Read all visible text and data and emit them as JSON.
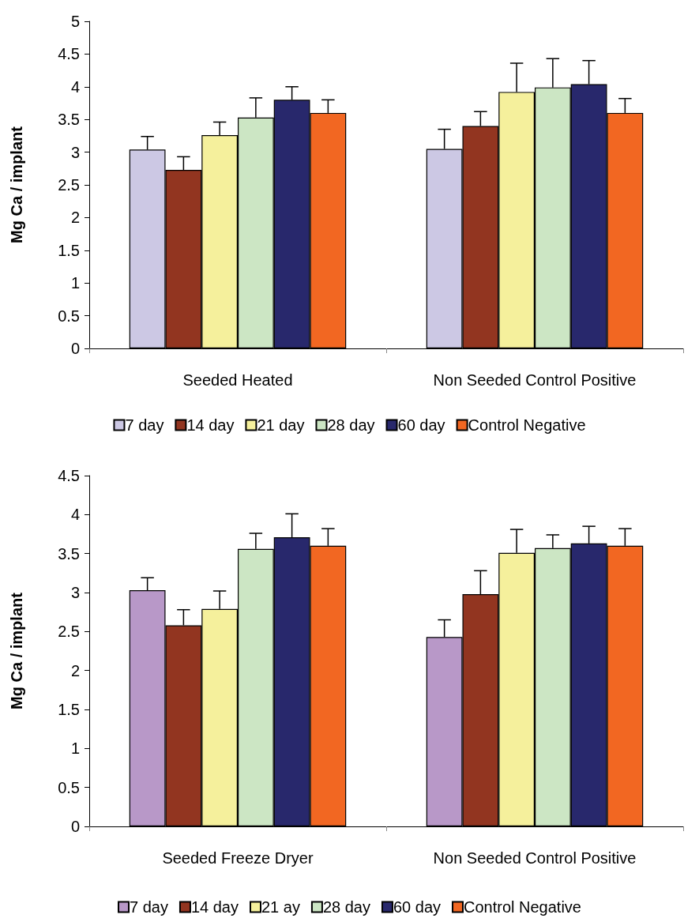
{
  "chart_data": [
    {
      "type": "bar",
      "ylabel": "Mg Ca / implant",
      "categories": [
        "Seeded Heated",
        "Non Seeded Control Positive"
      ],
      "ylim": [
        0,
        5
      ],
      "yticks": [
        0,
        0.5,
        1,
        1.5,
        2,
        2.5,
        3,
        3.5,
        4,
        4.5,
        5
      ],
      "grid": false,
      "legend": "bottom",
      "series": [
        {
          "name": "7 day",
          "color": "#ccc8e4",
          "values": [
            3.04,
            3.05
          ],
          "errors": [
            [
              3.04,
              3.24
            ],
            [
              3.05,
              3.35
            ]
          ]
        },
        {
          "name": "14 day",
          "color": "#923520",
          "values": [
            2.73,
            3.4
          ],
          "errors": [
            [
              2.73,
              2.93
            ],
            [
              3.4,
              3.62
            ]
          ]
        },
        {
          "name": "21 day",
          "color": "#f5f09c",
          "values": [
            3.26,
            3.92
          ],
          "errors": [
            [
              3.26,
              3.46
            ],
            [
              3.92,
              4.36
            ]
          ]
        },
        {
          "name": "28 day",
          "color": "#cce6c4",
          "values": [
            3.53,
            3.99
          ],
          "errors": [
            [
              3.53,
              3.83
            ],
            [
              3.99,
              4.43
            ]
          ]
        },
        {
          "name": "60 day",
          "color": "#28286c",
          "values": [
            3.8,
            4.04
          ],
          "errors": [
            [
              3.8,
              4.0
            ],
            [
              4.04,
              4.4
            ]
          ]
        },
        {
          "name": "Control Negative",
          "color": "#f26722",
          "values": [
            3.6,
            3.6
          ],
          "errors": [
            [
              3.6,
              3.8
            ],
            [
              3.6,
              3.82
            ]
          ]
        }
      ]
    },
    {
      "type": "bar",
      "ylabel": "Mg Ca / implant",
      "categories": [
        "Seeded Freeze Dryer",
        "Non Seeded Control Positive"
      ],
      "ylim": [
        0,
        4.5
      ],
      "yticks": [
        0,
        0.5,
        1,
        1.5,
        2,
        2.5,
        3,
        3.5,
        4,
        4.5
      ],
      "grid": false,
      "legend": "bottom",
      "series": [
        {
          "name": "7 day",
          "color": "#b898c8",
          "values": [
            3.03,
            2.43
          ],
          "errors": [
            [
              3.03,
              3.19
            ],
            [
              2.43,
              2.65
            ]
          ]
        },
        {
          "name": "14 day",
          "color": "#923520",
          "values": [
            2.58,
            2.98
          ],
          "errors": [
            [
              2.58,
              2.78
            ],
            [
              2.98,
              3.28
            ]
          ]
        },
        {
          "name": "21 ay",
          "color": "#f5f09c",
          "values": [
            2.79,
            3.51
          ],
          "errors": [
            [
              2.79,
              3.02
            ],
            [
              3.51,
              3.81
            ]
          ]
        },
        {
          "name": "28 day",
          "color": "#cce6c4",
          "values": [
            3.56,
            3.57
          ],
          "errors": [
            [
              3.56,
              3.76
            ],
            [
              3.57,
              3.74
            ]
          ]
        },
        {
          "name": "60 day",
          "color": "#28286c",
          "values": [
            3.71,
            3.63
          ],
          "errors": [
            [
              3.71,
              4.01
            ],
            [
              3.63,
              3.85
            ]
          ]
        },
        {
          "name": "Control Negative",
          "color": "#f26722",
          "values": [
            3.6,
            3.6
          ],
          "errors": [
            [
              3.6,
              3.82
            ],
            [
              3.6,
              3.82
            ]
          ]
        }
      ]
    }
  ]
}
